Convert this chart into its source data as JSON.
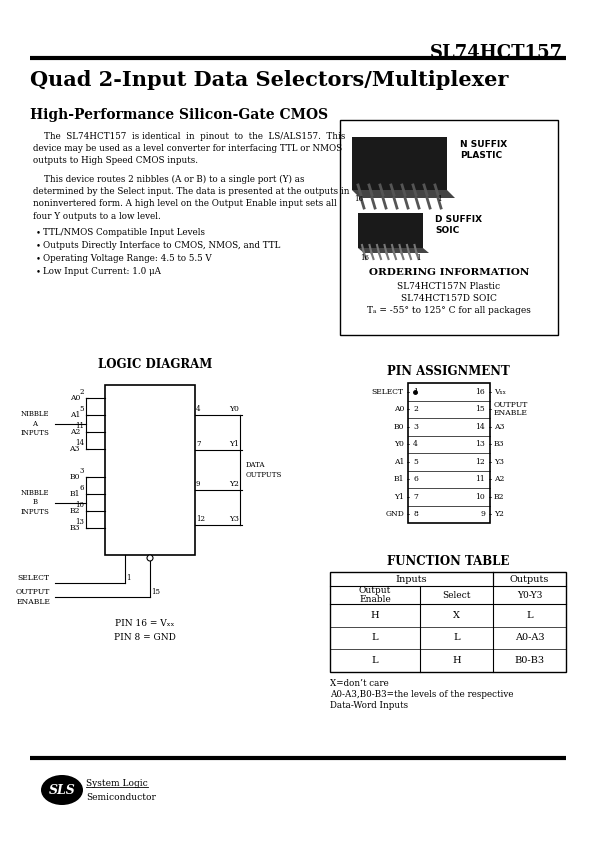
{
  "page_title": "SL74HCT157",
  "main_title": "Quad 2-Input Data Selectors/Multiplexer",
  "subtitle": "High-Performance Silicon-Gate CMOS",
  "para1_line1": "    The  SL74HCT157  is identical  in  pinout  to  the  LS/ALS157.  This",
  "para1_line2": "device may be used as a level converter for interfacing TTL or NMOS",
  "para1_line3": "outputs to High Speed CMOS inputs.",
  "para2_line1": "    This device routes 2 nibbles (A or B) to a single port (Y) as",
  "para2_line2": "determined by the Select input. The data is presented at the outputs in",
  "para2_line3": "noninvertered form. A high level on the Output Enable input sets all",
  "para2_line4": "four Y outputs to a low level.",
  "bullets": [
    "TTL/NMOS Compatible Input Levels",
    "Outputs Directly Interface to CMOS, NMOS, and TTL",
    "Operating Voltage Range: 4.5 to 5.5 V",
    "Low Input Current: 1.0 μA"
  ],
  "ordering_title": "ORDERING INFORMATION",
  "ordering_lines": [
    "SL74HCT157N Plastic",
    "SL74HCT157D SOIC",
    "Tₐ = -55° to 125° C for all packages"
  ],
  "pin_assignment_title": "PIN ASSIGNMENT",
  "pin_left": [
    "SELECT",
    "A0",
    "B0",
    "Y0",
    "A1",
    "B1",
    "Y1",
    "GND"
  ],
  "pin_left_num": [
    "1",
    "2",
    "3",
    "4",
    "5",
    "6",
    "7",
    "8"
  ],
  "pin_right_num": [
    "16",
    "15",
    "14",
    "13",
    "12",
    "11",
    "10",
    "9"
  ],
  "pin_right": [
    "Vₓₓ",
    "OUTPUT\nENABLE",
    "A3",
    "B3",
    "Y3",
    "A2",
    "B2",
    "Y2"
  ],
  "logic_diagram_title": "LOGIC DIAGRAM",
  "nibble_a_labels": [
    "A0",
    "A1",
    "A2",
    "A3"
  ],
  "nibble_a_pins": [
    "2",
    "5",
    "11",
    "14"
  ],
  "nibble_b_labels": [
    "B0",
    "B1",
    "B2",
    "B3"
  ],
  "nibble_b_pins": [
    "3",
    "6",
    "10",
    "13"
  ],
  "output_labels": [
    "Y0",
    "Y1",
    "Y2",
    "Y3"
  ],
  "output_pins": [
    "4",
    "7",
    "9",
    "12"
  ],
  "function_table_title": "FUNCTION TABLE",
  "ft_rows": [
    [
      "H",
      "X",
      "L"
    ],
    [
      "L",
      "L",
      "A0-A3"
    ],
    [
      "L",
      "H",
      "B0-B3"
    ]
  ],
  "ft_note1": "X=don’t care",
  "ft_note2": "A0-A3,B0-B3=the levels of the respective",
  "ft_note3": "Data-Word Inputs",
  "logo_text": "SLS",
  "logo_line1": "System Logic",
  "logo_line2": "Semiconductor",
  "bg_color": "#ffffff"
}
